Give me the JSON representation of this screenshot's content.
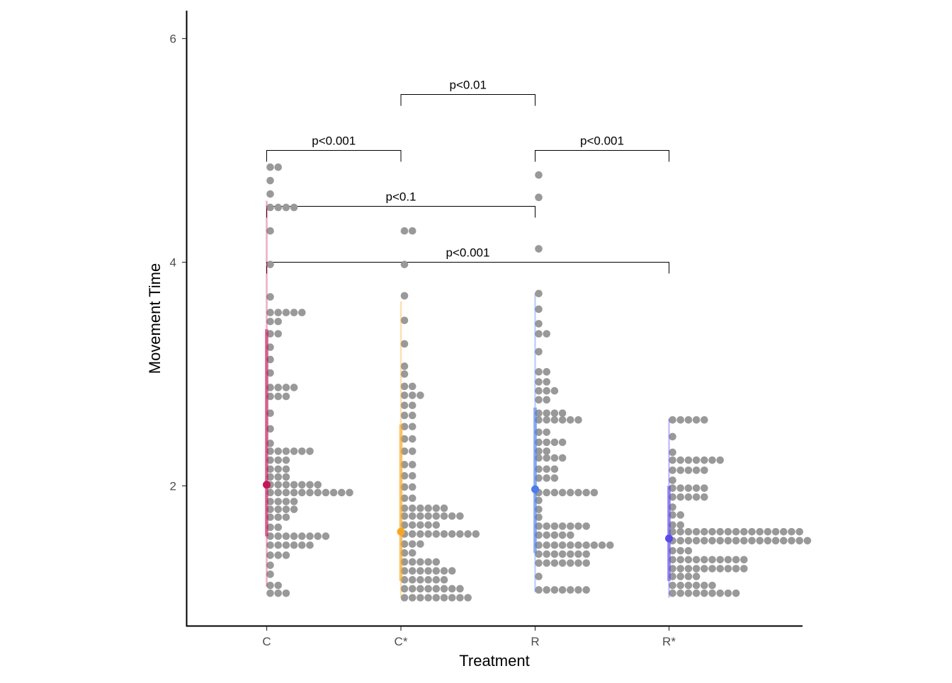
{
  "chart_data": {
    "type": "scatter",
    "subtype": "dotplot-with-pointinterval",
    "title": "",
    "xlabel": "Treatment",
    "ylabel": "Movement Time",
    "categories": [
      "C",
      "C*",
      "R",
      "R*"
    ],
    "ylim": [
      0.75,
      6.25
    ],
    "yticks": [
      2,
      4,
      6
    ],
    "grid": false,
    "legend": "none",
    "dot_color": "#999999",
    "groups": [
      {
        "category": "C",
        "color": "#c2185b",
        "median": 2.01,
        "interval_66": [
          1.55,
          3.4
        ],
        "interval_95": [
          1.1,
          4.55
        ],
        "dot_rows": [
          {
            "y": 4.85,
            "n": 2
          },
          {
            "y": 4.73,
            "n": 1
          },
          {
            "y": 4.61,
            "n": 1
          },
          {
            "y": 4.49,
            "n": 4
          },
          {
            "y": 4.28,
            "n": 1
          },
          {
            "y": 3.98,
            "n": 1
          },
          {
            "y": 3.69,
            "n": 1
          },
          {
            "y": 3.55,
            "n": 5
          },
          {
            "y": 3.47,
            "n": 2
          },
          {
            "y": 3.36,
            "n": 2
          },
          {
            "y": 3.24,
            "n": 1
          },
          {
            "y": 3.13,
            "n": 1
          },
          {
            "y": 3.01,
            "n": 1
          },
          {
            "y": 2.88,
            "n": 4
          },
          {
            "y": 2.8,
            "n": 3
          },
          {
            "y": 2.65,
            "n": 1
          },
          {
            "y": 2.51,
            "n": 1
          },
          {
            "y": 2.38,
            "n": 1
          },
          {
            "y": 2.31,
            "n": 6
          },
          {
            "y": 2.23,
            "n": 3
          },
          {
            "y": 2.15,
            "n": 3
          },
          {
            "y": 2.08,
            "n": 3
          },
          {
            "y": 2.01,
            "n": 7
          },
          {
            "y": 1.94,
            "n": 11
          },
          {
            "y": 1.86,
            "n": 4
          },
          {
            "y": 1.79,
            "n": 4
          },
          {
            "y": 1.72,
            "n": 3
          },
          {
            "y": 1.63,
            "n": 2
          },
          {
            "y": 1.55,
            "n": 8
          },
          {
            "y": 1.47,
            "n": 6
          },
          {
            "y": 1.38,
            "n": 3
          },
          {
            "y": 1.29,
            "n": 1
          },
          {
            "y": 1.21,
            "n": 1
          },
          {
            "y": 1.11,
            "n": 2
          },
          {
            "y": 1.04,
            "n": 3
          }
        ]
      },
      {
        "category": "C*",
        "color": "#f5a623",
        "median": 1.59,
        "interval_66": [
          1.15,
          2.55
        ],
        "interval_95": [
          1.0,
          3.65
        ],
        "dot_rows": [
          {
            "y": 4.28,
            "n": 2
          },
          {
            "y": 3.98,
            "n": 1
          },
          {
            "y": 3.7,
            "n": 1
          },
          {
            "y": 3.48,
            "n": 1
          },
          {
            "y": 3.27,
            "n": 1
          },
          {
            "y": 3.07,
            "n": 1
          },
          {
            "y": 3.0,
            "n": 1
          },
          {
            "y": 2.89,
            "n": 2
          },
          {
            "y": 2.81,
            "n": 3
          },
          {
            "y": 2.72,
            "n": 2
          },
          {
            "y": 2.63,
            "n": 2
          },
          {
            "y": 2.53,
            "n": 2
          },
          {
            "y": 2.42,
            "n": 2
          },
          {
            "y": 2.31,
            "n": 2
          },
          {
            "y": 2.19,
            "n": 2
          },
          {
            "y": 2.09,
            "n": 2
          },
          {
            "y": 1.99,
            "n": 2
          },
          {
            "y": 1.89,
            "n": 2
          },
          {
            "y": 1.8,
            "n": 6
          },
          {
            "y": 1.73,
            "n": 8
          },
          {
            "y": 1.65,
            "n": 5
          },
          {
            "y": 1.57,
            "n": 10
          },
          {
            "y": 1.48,
            "n": 3
          },
          {
            "y": 1.4,
            "n": 2
          },
          {
            "y": 1.32,
            "n": 5
          },
          {
            "y": 1.24,
            "n": 7
          },
          {
            "y": 1.16,
            "n": 6
          },
          {
            "y": 1.08,
            "n": 8
          },
          {
            "y": 1.0,
            "n": 9
          }
        ]
      },
      {
        "category": "R",
        "color": "#4a7de8",
        "median": 1.97,
        "interval_66": [
          1.4,
          2.7
        ],
        "interval_95": [
          1.05,
          3.72
        ],
        "dot_rows": [
          {
            "y": 4.78,
            "n": 1
          },
          {
            "y": 4.58,
            "n": 1
          },
          {
            "y": 4.12,
            "n": 1
          },
          {
            "y": 3.72,
            "n": 1
          },
          {
            "y": 3.58,
            "n": 1
          },
          {
            "y": 3.45,
            "n": 1
          },
          {
            "y": 3.36,
            "n": 2
          },
          {
            "y": 3.2,
            "n": 1
          },
          {
            "y": 3.02,
            "n": 2
          },
          {
            "y": 2.93,
            "n": 2
          },
          {
            "y": 2.85,
            "n": 3
          },
          {
            "y": 2.77,
            "n": 2
          },
          {
            "y": 2.65,
            "n": 4
          },
          {
            "y": 2.59,
            "n": 6
          },
          {
            "y": 2.48,
            "n": 2
          },
          {
            "y": 2.39,
            "n": 4
          },
          {
            "y": 2.31,
            "n": 2
          },
          {
            "y": 2.25,
            "n": 4
          },
          {
            "y": 2.15,
            "n": 3
          },
          {
            "y": 2.07,
            "n": 3
          },
          {
            "y": 1.94,
            "n": 8
          },
          {
            "y": 1.87,
            "n": 1
          },
          {
            "y": 1.79,
            "n": 1
          },
          {
            "y": 1.72,
            "n": 1
          },
          {
            "y": 1.64,
            "n": 7
          },
          {
            "y": 1.56,
            "n": 5
          },
          {
            "y": 1.47,
            "n": 10
          },
          {
            "y": 1.39,
            "n": 7
          },
          {
            "y": 1.31,
            "n": 7
          },
          {
            "y": 1.19,
            "n": 1
          },
          {
            "y": 1.07,
            "n": 7
          }
        ]
      },
      {
        "category": "R*",
        "color": "#5a4bea",
        "median": 1.53,
        "interval_66": [
          1.15,
          2.0
        ],
        "interval_95": [
          1.0,
          2.6
        ],
        "dot_rows": [
          {
            "y": 2.59,
            "n": 5
          },
          {
            "y": 2.44,
            "n": 1
          },
          {
            "y": 2.3,
            "n": 1
          },
          {
            "y": 2.23,
            "n": 7
          },
          {
            "y": 2.14,
            "n": 5
          },
          {
            "y": 2.05,
            "n": 1
          },
          {
            "y": 1.98,
            "n": 5
          },
          {
            "y": 1.9,
            "n": 5
          },
          {
            "y": 1.81,
            "n": 1
          },
          {
            "y": 1.74,
            "n": 2
          },
          {
            "y": 1.65,
            "n": 2
          },
          {
            "y": 1.59,
            "n": 17
          },
          {
            "y": 1.51,
            "n": 18
          },
          {
            "y": 1.42,
            "n": 3
          },
          {
            "y": 1.34,
            "n": 10
          },
          {
            "y": 1.26,
            "n": 10
          },
          {
            "y": 1.19,
            "n": 4
          },
          {
            "y": 1.11,
            "n": 6
          },
          {
            "y": 1.04,
            "n": 9
          }
        ]
      }
    ],
    "comparisons": [
      {
        "from": "C*",
        "to": "R",
        "label": "p<0.01",
        "y": 5.5
      },
      {
        "from": "C",
        "to": "C*",
        "label": "p<0.001",
        "y": 5.0
      },
      {
        "from": "R",
        "to": "R*",
        "label": "p<0.001",
        "y": 5.0
      },
      {
        "from": "C",
        "to": "R",
        "label": "p<0.1",
        "y": 4.5
      },
      {
        "from": "C",
        "to": "R*",
        "label": "p<0.001",
        "y": 4.0
      }
    ]
  }
}
